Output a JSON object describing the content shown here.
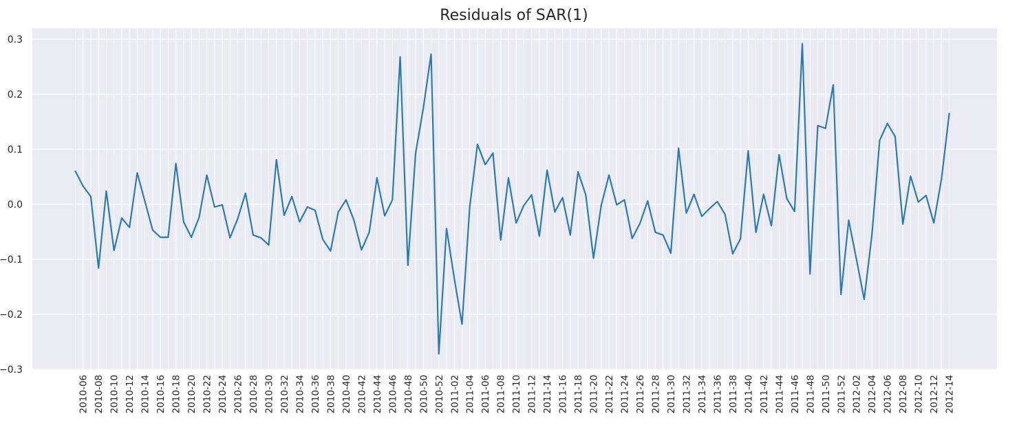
{
  "chart_data": {
    "type": "line",
    "title": "Residuals of SAR(1)",
    "xlabel": "",
    "ylabel": "",
    "ylim": [
      -0.3,
      0.3
    ],
    "yticks": [
      -0.3,
      -0.2,
      -0.1,
      0.0,
      0.1,
      0.2,
      0.3
    ],
    "ytick_labels": [
      "−0.3",
      "−0.2",
      "−0.1",
      "0.0",
      "0.1",
      "0.2",
      "0.3"
    ],
    "grid": true,
    "x_start": "2010-05",
    "xtick_labels": [
      "2010-06",
      "2010-08",
      "2010-10",
      "2010-12",
      "2010-14",
      "2010-16",
      "2010-18",
      "2010-20",
      "2010-22",
      "2010-24",
      "2010-26",
      "2010-28",
      "2010-30",
      "2010-32",
      "2010-34",
      "2010-36",
      "2010-38",
      "2010-40",
      "2010-42",
      "2010-44",
      "2010-46",
      "2010-48",
      "2010-50",
      "2010-52",
      "2011-02",
      "2011-04",
      "2011-06",
      "2011-08",
      "2011-10",
      "2011-12",
      "2011-14",
      "2011-16",
      "2011-18",
      "2011-20",
      "2011-22",
      "2011-24",
      "2011-26",
      "2011-28",
      "2011-30",
      "2011-32",
      "2011-34",
      "2011-36",
      "2011-38",
      "2011-40",
      "2011-42",
      "2011-44",
      "2011-46",
      "2011-48",
      "2011-50",
      "2011-52",
      "2012-02",
      "2012-04",
      "2012-06",
      "2012-08",
      "2012-10",
      "2012-12",
      "2012-14"
    ],
    "series": [
      {
        "name": "",
        "color": "#2a7ab4",
        "values": [
          0.06,
          0.033,
          0.014,
          -0.116,
          0.024,
          -0.084,
          -0.025,
          -0.042,
          0.057,
          0.005,
          -0.047,
          -0.06,
          -0.06,
          0.074,
          -0.032,
          -0.06,
          -0.024,
          0.053,
          -0.005,
          -0.001,
          -0.061,
          -0.026,
          0.02,
          -0.056,
          -0.061,
          -0.074,
          0.081,
          -0.02,
          0.014,
          -0.032,
          -0.005,
          -0.011,
          -0.064,
          -0.085,
          -0.014,
          0.008,
          -0.028,
          -0.083,
          -0.051,
          0.048,
          -0.021,
          0.008,
          0.268,
          -0.111,
          0.093,
          0.175,
          0.273,
          -0.272,
          -0.044,
          -0.135,
          -0.218,
          -0.004,
          0.109,
          0.072,
          0.093,
          -0.065,
          0.048,
          -0.034,
          -0.002,
          0.017,
          -0.058,
          0.062,
          -0.014,
          0.012,
          -0.056,
          0.059,
          0.017,
          -0.098,
          -0.002,
          0.053,
          -0.001,
          0.008,
          -0.062,
          -0.035,
          0.006,
          -0.051,
          -0.056,
          -0.089,
          0.102,
          -0.016,
          0.018,
          -0.022,
          -0.008,
          0.005,
          -0.018,
          -0.09,
          -0.063,
          0.097,
          -0.051,
          0.018,
          -0.039,
          0.09,
          0.01,
          -0.013,
          0.292,
          -0.127,
          0.143,
          0.138,
          0.217,
          -0.164,
          -0.029,
          -0.1,
          -0.173,
          -0.056,
          0.116,
          0.147,
          0.123,
          -0.036,
          0.051,
          0.004,
          0.016,
          -0.034,
          0.046,
          0.165
        ]
      }
    ]
  }
}
